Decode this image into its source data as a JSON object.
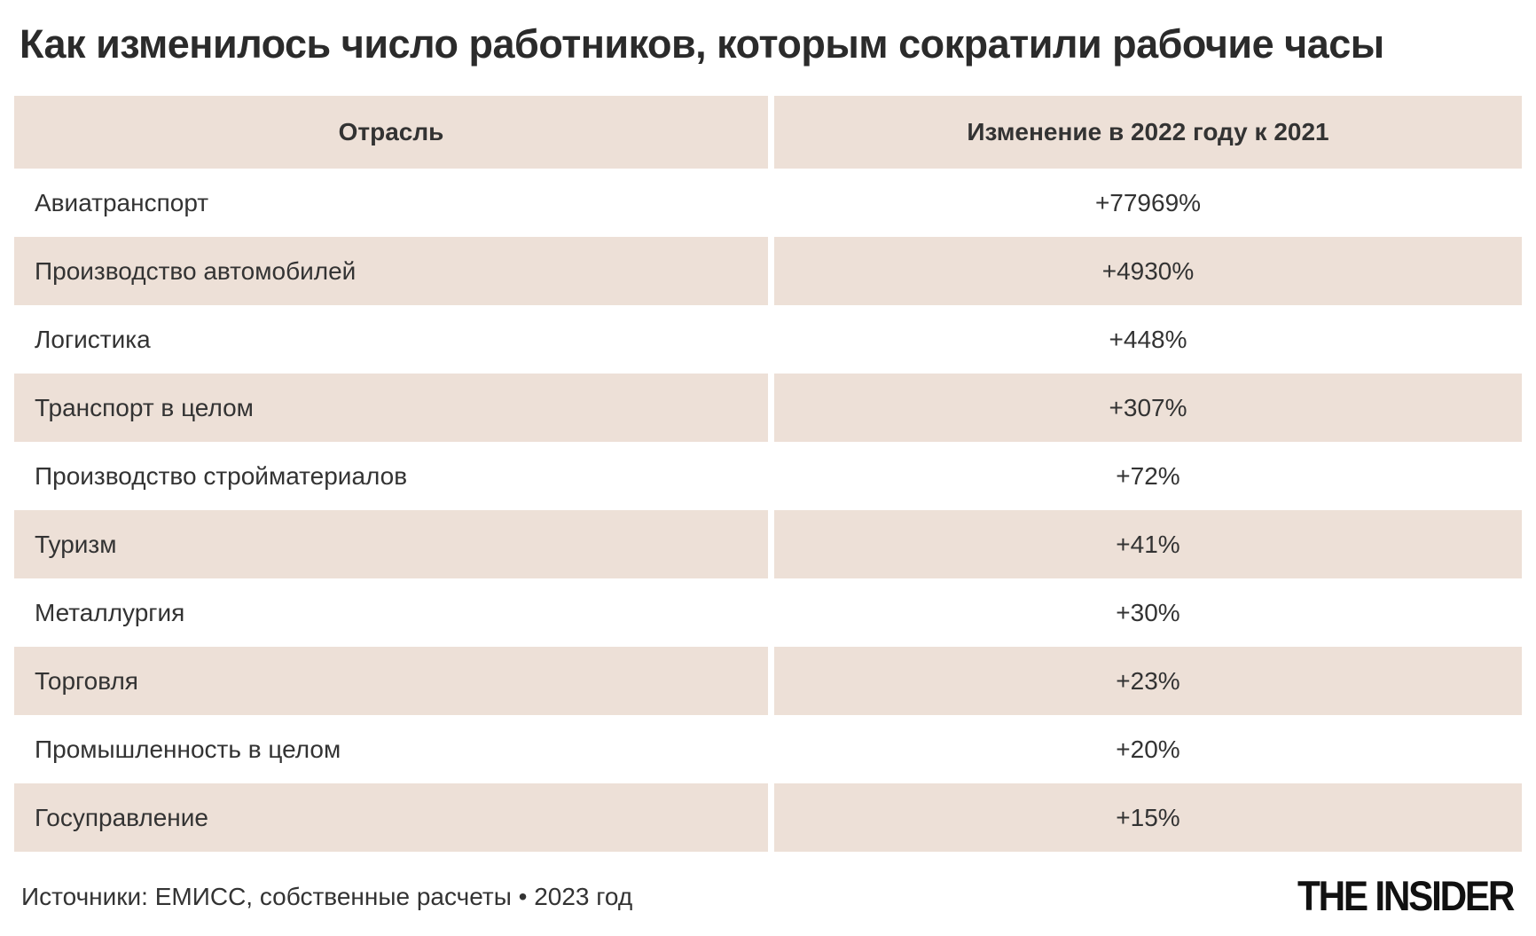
{
  "title": "Как изменилось число работников, которым сократили рабочие часы",
  "chart_data": {
    "type": "table",
    "title": "Как изменилось число работников, которым сократили рабочие часы",
    "columns": [
      "Отрасль",
      "Изменение в 2022 году к 2021"
    ],
    "rows": [
      [
        "Авиатранспорт",
        "+77969%"
      ],
      [
        "Производство автомобилей",
        "+4930%"
      ],
      [
        "Логистика",
        "+448%"
      ],
      [
        "Транспорт в целом",
        "+307%"
      ],
      [
        "Производство стройматериалов",
        "+72%"
      ],
      [
        "Туризм",
        "+41%"
      ],
      [
        "Металлургия",
        "+30%"
      ],
      [
        "Торговля",
        "+23%"
      ],
      [
        "Промышленность в целом",
        "+20%"
      ],
      [
        "Госуправление",
        "+15%"
      ]
    ],
    "values_percent": [
      77969,
      4930,
      448,
      307,
      72,
      41,
      30,
      23,
      20,
      15
    ],
    "source": "Источники: ЕМИСС, собственные расчеты • 2023 год"
  },
  "table": {
    "header": {
      "industry": "Отрасль",
      "change": "Изменение в 2022 году к 2021"
    },
    "rows": [
      {
        "industry": "Авиатранспорт",
        "change": "+77969%"
      },
      {
        "industry": "Производство автомобилей",
        "change": "+4930%"
      },
      {
        "industry": "Логистика",
        "change": "+448%"
      },
      {
        "industry": "Транспорт в целом",
        "change": "+307%"
      },
      {
        "industry": "Производство стройматериалов",
        "change": "+72%"
      },
      {
        "industry": "Туризм",
        "change": "+41%"
      },
      {
        "industry": "Металлургия",
        "change": "+30%"
      },
      {
        "industry": "Торговля",
        "change": "+23%"
      },
      {
        "industry": "Промышленность в целом",
        "change": "+20%"
      },
      {
        "industry": "Госуправление",
        "change": "+15%"
      }
    ]
  },
  "footer": {
    "source": "Источники: ЕМИСС, собственные расчеты • 2023 год",
    "logo": "THE INSIDER"
  },
  "colors": {
    "row_shade": "#EDE0D7",
    "title_text": "#2B2B2B",
    "body_text": "#333333",
    "background": "#FFFFFF",
    "logo": "#111111"
  }
}
